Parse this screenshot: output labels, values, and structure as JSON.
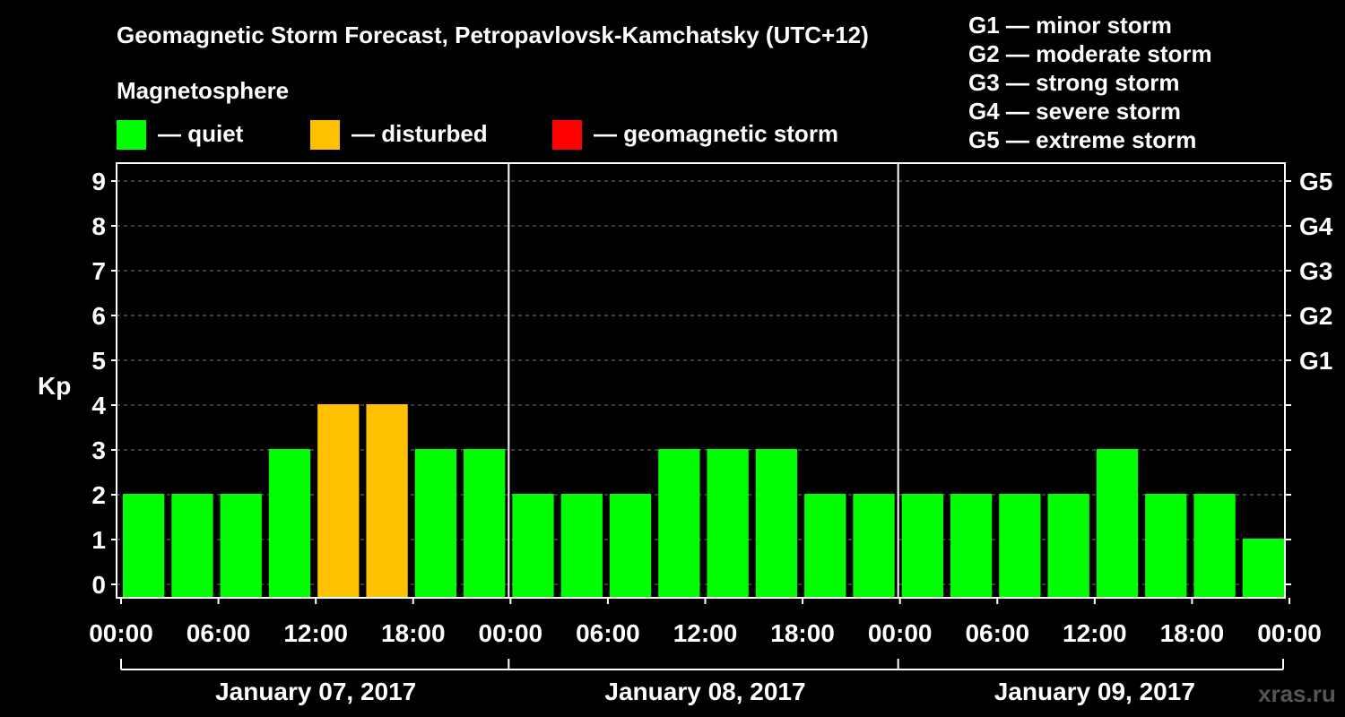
{
  "chart_data": {
    "type": "bar",
    "title": "Geomagnetic Storm Forecast, Petropavlovsk-Kamchatsky (UTC+12)",
    "legend": {
      "heading": "Magnetosphere",
      "items": [
        {
          "label": "— quiet",
          "color": "#00ff00"
        },
        {
          "label": "— disturbed",
          "color": "#ffc000"
        },
        {
          "label": "— geomagnetic storm",
          "color": "#ff0000"
        }
      ]
    },
    "storm_scale": [
      "G1 — minor storm",
      "G2 — moderate storm",
      "G3 — strong storm",
      "G4 — severe storm",
      "G5 — extreme storm"
    ],
    "ylabel": "Kp",
    "ylim": [
      0,
      9
    ],
    "yticks": [
      "0",
      "1",
      "2",
      "3",
      "4",
      "5",
      "6",
      "7",
      "8",
      "9"
    ],
    "right_labels": [
      {
        "kp": 5,
        "label": "G1"
      },
      {
        "kp": 6,
        "label": "G2"
      },
      {
        "kp": 7,
        "label": "G3"
      },
      {
        "kp": 8,
        "label": "G4"
      },
      {
        "kp": 9,
        "label": "G5"
      }
    ],
    "xticks": [
      "00:00",
      "06:00",
      "12:00",
      "18:00",
      "00:00",
      "06:00",
      "12:00",
      "18:00",
      "00:00",
      "06:00",
      "12:00",
      "18:00",
      "00:00"
    ],
    "days": [
      "January 07, 2017",
      "January 08, 2017",
      "January 09, 2017"
    ],
    "values": [
      2,
      2,
      2,
      3,
      4,
      4,
      3,
      3,
      2,
      2,
      2,
      3,
      3,
      3,
      2,
      2,
      2,
      2,
      2,
      2,
      3,
      2,
      2,
      1
    ],
    "grid": true
  },
  "watermark": "xras.ru"
}
